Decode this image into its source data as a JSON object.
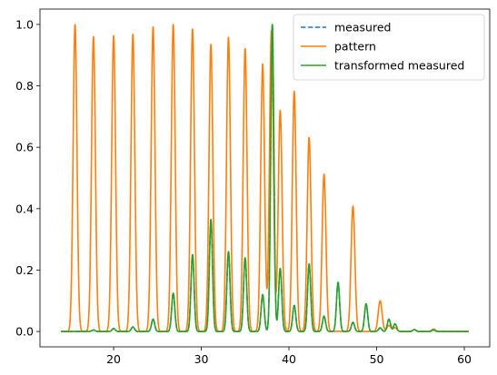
{
  "chart_data": {
    "type": "line",
    "xlim": [
      11.6,
      62.9
    ],
    "ylim": [
      -0.05,
      1.05
    ],
    "xticks": [
      20,
      30,
      40,
      50,
      60
    ],
    "yticks": [
      0.0,
      0.2,
      0.4,
      0.6,
      0.8,
      1.0
    ],
    "xtick_labels": [
      "20",
      "30",
      "40",
      "50",
      "60"
    ],
    "ytick_labels": [
      "0.0",
      "0.2",
      "0.4",
      "0.6",
      "0.8",
      "1.0"
    ],
    "x_range": [
      14.0,
      60.5
    ],
    "legend_position": "top-right",
    "series": [
      {
        "name": "measured",
        "color": "#1f77b4",
        "dash": "dashed",
        "peak_width": 0.18,
        "peaks": [
          [
            17.7,
            0.005
          ],
          [
            20.0,
            0.01
          ],
          [
            22.2,
            0.015
          ],
          [
            24.5,
            0.04
          ],
          [
            26.8,
            0.125
          ],
          [
            29.0,
            0.25
          ],
          [
            31.1,
            0.365
          ],
          [
            33.1,
            0.26
          ],
          [
            35.0,
            0.24
          ],
          [
            37.0,
            0.12
          ],
          [
            38.1,
            1.0
          ],
          [
            39.0,
            0.205
          ],
          [
            40.6,
            0.085
          ],
          [
            42.3,
            0.22
          ],
          [
            44.0,
            0.05
          ],
          [
            45.6,
            0.16
          ],
          [
            47.3,
            0.03
          ],
          [
            48.8,
            0.09
          ],
          [
            50.4,
            0.012
          ],
          [
            51.4,
            0.04
          ],
          [
            52.1,
            0.025
          ],
          [
            54.3,
            0.006
          ],
          [
            56.5,
            0.005
          ]
        ]
      },
      {
        "name": "pattern",
        "color": "#ff7f0e",
        "dash": "solid",
        "peak_width": 0.22,
        "peaks": [
          [
            15.6,
            1.0
          ],
          [
            17.7,
            0.96
          ],
          [
            20.0,
            0.963
          ],
          [
            22.2,
            0.968
          ],
          [
            24.5,
            0.992
          ],
          [
            26.8,
            1.0
          ],
          [
            29.0,
            0.985
          ],
          [
            31.1,
            0.935
          ],
          [
            33.1,
            0.958
          ],
          [
            35.0,
            0.921
          ],
          [
            37.0,
            0.871
          ],
          [
            38.0,
            0.98
          ],
          [
            39.0,
            0.72
          ],
          [
            40.6,
            0.782
          ],
          [
            42.3,
            0.632
          ],
          [
            44.0,
            0.512
          ],
          [
            45.6,
            0.001
          ],
          [
            47.3,
            0.408
          ],
          [
            50.4,
            0.1
          ],
          [
            51.4,
            0.02
          ],
          [
            52.1,
            0.012
          ],
          [
            54.3,
            0.006
          ],
          [
            56.5,
            0.008
          ]
        ]
      },
      {
        "name": "transformed measured",
        "color": "#2ca02c",
        "dash": "solid",
        "peak_width": 0.18,
        "peaks": [
          [
            17.7,
            0.005
          ],
          [
            20.0,
            0.01
          ],
          [
            22.2,
            0.015
          ],
          [
            24.5,
            0.04
          ],
          [
            26.8,
            0.125
          ],
          [
            29.0,
            0.25
          ],
          [
            31.1,
            0.365
          ],
          [
            33.1,
            0.26
          ],
          [
            35.0,
            0.24
          ],
          [
            37.0,
            0.12
          ],
          [
            38.1,
            1.0
          ],
          [
            39.0,
            0.205
          ],
          [
            40.6,
            0.085
          ],
          [
            42.3,
            0.22
          ],
          [
            44.0,
            0.05
          ],
          [
            45.6,
            0.16
          ],
          [
            47.3,
            0.03
          ],
          [
            48.8,
            0.09
          ],
          [
            50.4,
            0.012
          ],
          [
            51.4,
            0.04
          ],
          [
            52.1,
            0.025
          ],
          [
            54.3,
            0.006
          ],
          [
            56.5,
            0.005
          ]
        ]
      }
    ]
  }
}
